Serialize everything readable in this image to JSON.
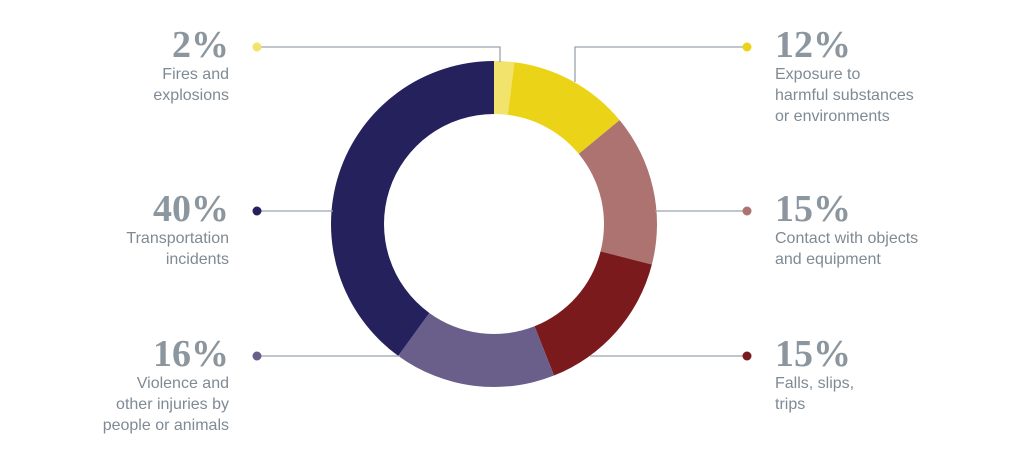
{
  "chart_data": {
    "type": "donut",
    "categories": [
      "Fires and\nexplosions",
      "Exposure to\nharmful substances\nor environments",
      "Contact with objects\nand equipment",
      "Falls, slips,\ntrips",
      "Violence and\nother injuries by\npeople or animals",
      "Transportation\nincidents"
    ],
    "values": [
      2,
      12,
      15,
      15,
      16,
      40
    ],
    "value_labels": [
      "2%",
      "12%",
      "15%",
      "15%",
      "16%",
      "40%"
    ],
    "colors": [
      "#f2e36c",
      "#ebd417",
      "#ad7371",
      "#7b1a1d",
      "#6a5f8b",
      "#25215d"
    ]
  }
}
